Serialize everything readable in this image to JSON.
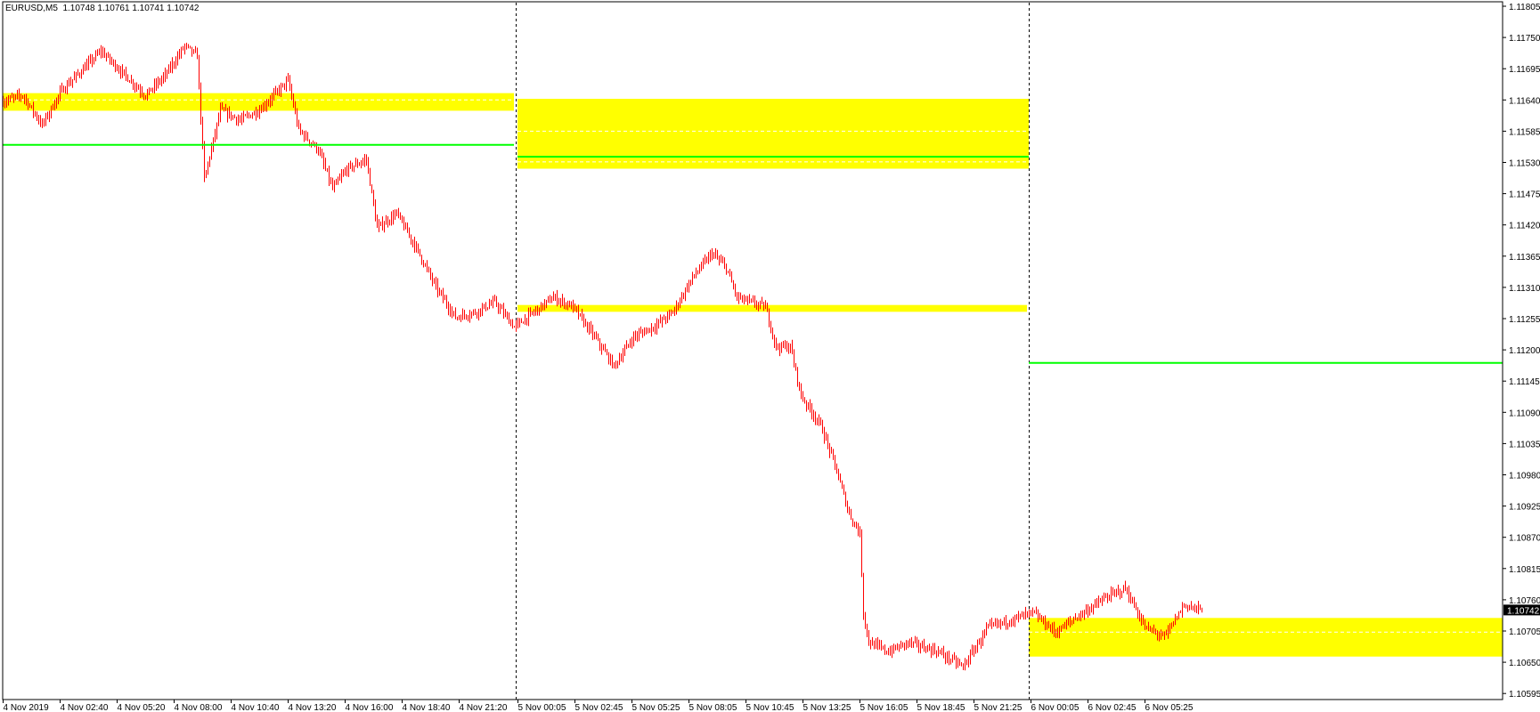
{
  "header": {
    "symbol": "EURUSD,M5",
    "ohlc": "1.10748 1.10761 1.10741 1.10742"
  },
  "colors": {
    "bars": "#ff0000",
    "zone": "#ffff00",
    "level_line": "#00ff00",
    "background": "#ffffff",
    "axis": "#000000"
  },
  "chart_data": {
    "type": "ohlc-bar",
    "symbol": "EURUSD",
    "timeframe": "M5",
    "ylim": [
      1.10595,
      1.11805
    ],
    "grid": false,
    "current_price": "1.10742",
    "y_ticks": [
      "1.11805",
      "1.11750",
      "1.11695",
      "1.11640",
      "1.11585",
      "1.11530",
      "1.11475",
      "1.11420",
      "1.11365",
      "1.11310",
      "1.11255",
      "1.11200",
      "1.11145",
      "1.11090",
      "1.11035",
      "1.10980",
      "1.10925",
      "1.10870",
      "1.10815",
      "1.10760",
      "1.10705",
      "1.10650",
      "1.10595"
    ],
    "x_ticks": [
      "4 Nov 2019",
      "4 Nov 02:40",
      "4 Nov 05:20",
      "4 Nov 08:00",
      "4 Nov 10:40",
      "4 Nov 13:20",
      "4 Nov 16:00",
      "4 Nov 18:40",
      "4 Nov 21:20",
      "5 Nov 00:05",
      "5 Nov 02:45",
      "5 Nov 05:25",
      "5 Nov 08:05",
      "5 Nov 10:45",
      "5 Nov 13:25",
      "5 Nov 16:05",
      "5 Nov 18:45",
      "5 Nov 21:25",
      "6 Nov 00:05",
      "6 Nov 02:45",
      "6 Nov 05:25"
    ],
    "day_separators": [
      "5 Nov 00:00",
      "6 Nov 00:00"
    ],
    "close_path": [
      [
        "4 Nov 00:10",
        1.1164
      ],
      [
        "4 Nov 00:55",
        1.11649
      ],
      [
        "4 Nov 01:50",
        1.11597
      ],
      [
        "4 Nov 02:45",
        1.11658
      ],
      [
        "4 Nov 03:40",
        1.11692
      ],
      [
        "4 Nov 04:35",
        1.11727
      ],
      [
        "4 Nov 05:30",
        1.11692
      ],
      [
        "4 Nov 06:40",
        1.11649
      ],
      [
        "4 Nov 07:35",
        1.11684
      ],
      [
        "4 Nov 08:30",
        1.11736
      ],
      [
        "4 Nov 09:05",
        1.11718
      ],
      [
        "4 Nov 09:25",
        1.11501
      ],
      [
        "4 Nov 10:10",
        1.11623
      ],
      [
        "4 Nov 11:05",
        1.11605
      ],
      [
        "4 Nov 12:00",
        1.11623
      ],
      [
        "4 Nov 13:20",
        1.11675
      ],
      [
        "4 Nov 13:50",
        1.11588
      ],
      [
        "4 Nov 14:45",
        1.11553
      ],
      [
        "4 Nov 15:25",
        1.11484
      ],
      [
        "4 Nov 16:05",
        1.11519
      ],
      [
        "4 Nov 17:00",
        1.11536
      ],
      [
        "4 Nov 17:30",
        1.11415
      ],
      [
        "4 Nov 18:25",
        1.11441
      ],
      [
        "4 Nov 19:20",
        1.1138
      ],
      [
        "4 Nov 20:15",
        1.11311
      ],
      [
        "4 Nov 21:10",
        1.11258
      ],
      [
        "4 Nov 22:05",
        1.11267
      ],
      [
        "4 Nov 23:00",
        1.11285
      ],
      [
        "4 Nov 23:55",
        1.11241
      ],
      [
        "5 Nov 00:50",
        1.11267
      ],
      [
        "5 Nov 01:45",
        1.11293
      ],
      [
        "5 Nov 02:40",
        1.11276
      ],
      [
        "5 Nov 03:40",
        1.11224
      ],
      [
        "5 Nov 04:35",
        1.11172
      ],
      [
        "5 Nov 05:30",
        1.11224
      ],
      [
        "5 Nov 06:25",
        1.11241
      ],
      [
        "5 Nov 07:20",
        1.11267
      ],
      [
        "5 Nov 08:15",
        1.11328
      ],
      [
        "5 Nov 09:10",
        1.11371
      ],
      [
        "5 Nov 09:50",
        1.11345
      ],
      [
        "5 Nov 10:20",
        1.11293
      ],
      [
        "5 Nov 11:40",
        1.11276
      ],
      [
        "5 Nov 12:10",
        1.11206
      ],
      [
        "5 Nov 12:50",
        1.11206
      ],
      [
        "5 Nov 13:20",
        1.1112
      ],
      [
        "5 Nov 14:15",
        1.11068
      ],
      [
        "5 Nov 14:55",
        1.10998
      ],
      [
        "5 Nov 15:35",
        1.10912
      ],
      [
        "5 Nov 16:05",
        1.10877
      ],
      [
        "5 Nov 16:15",
        1.10738
      ],
      [
        "5 Nov 16:30",
        1.10686
      ],
      [
        "5 Nov 17:25",
        1.10669
      ],
      [
        "5 Nov 18:20",
        1.10686
      ],
      [
        "5 Nov 19:45",
        1.10669
      ],
      [
        "5 Nov 20:55",
        1.10643
      ],
      [
        "5 Nov 22:05",
        1.10712
      ],
      [
        "5 Nov 23:25",
        1.10729
      ],
      [
        "6 Nov 00:10",
        1.10738
      ],
      [
        "6 Nov 01:15",
        1.10703
      ],
      [
        "6 Nov 02:10",
        1.10729
      ],
      [
        "6 Nov 03:35",
        1.10764
      ],
      [
        "6 Nov 04:30",
        1.10781
      ],
      [
        "6 Nov 05:25",
        1.10712
      ],
      [
        "6 Nov 06:20",
        1.10695
      ],
      [
        "6 Nov 07:15",
        1.10752
      ],
      [
        "6 Nov 08:05",
        1.10742
      ]
    ],
    "zones": [
      {
        "from": "4 Nov 00:00",
        "to": "4 Nov 23:55",
        "top": 1.11652,
        "bottom": 1.11621,
        "dashed": [
          1.1164
        ]
      },
      {
        "from": "5 Nov 00:05",
        "to": "6 Nov 00:00",
        "top": 1.11642,
        "bottom": 1.11519,
        "dashed": [
          1.11585,
          1.11531
        ]
      },
      {
        "from": "5 Nov 00:05",
        "to": "5 Nov 23:55",
        "top": 1.11279,
        "bottom": 1.11267,
        "dashed": []
      },
      {
        "from": "6 Nov 00:00",
        "to": "end",
        "top": 1.10728,
        "bottom": 1.1066,
        "dashed": [
          1.10703
        ]
      }
    ],
    "level_lines": [
      {
        "from": "4 Nov 00:00",
        "to": "4 Nov 23:55",
        "price": 1.11561
      },
      {
        "from": "5 Nov 00:05",
        "to": "6 Nov 00:00",
        "price": 1.1154
      },
      {
        "from": "6 Nov 00:00",
        "to": "end",
        "price": 1.11177
      }
    ]
  }
}
